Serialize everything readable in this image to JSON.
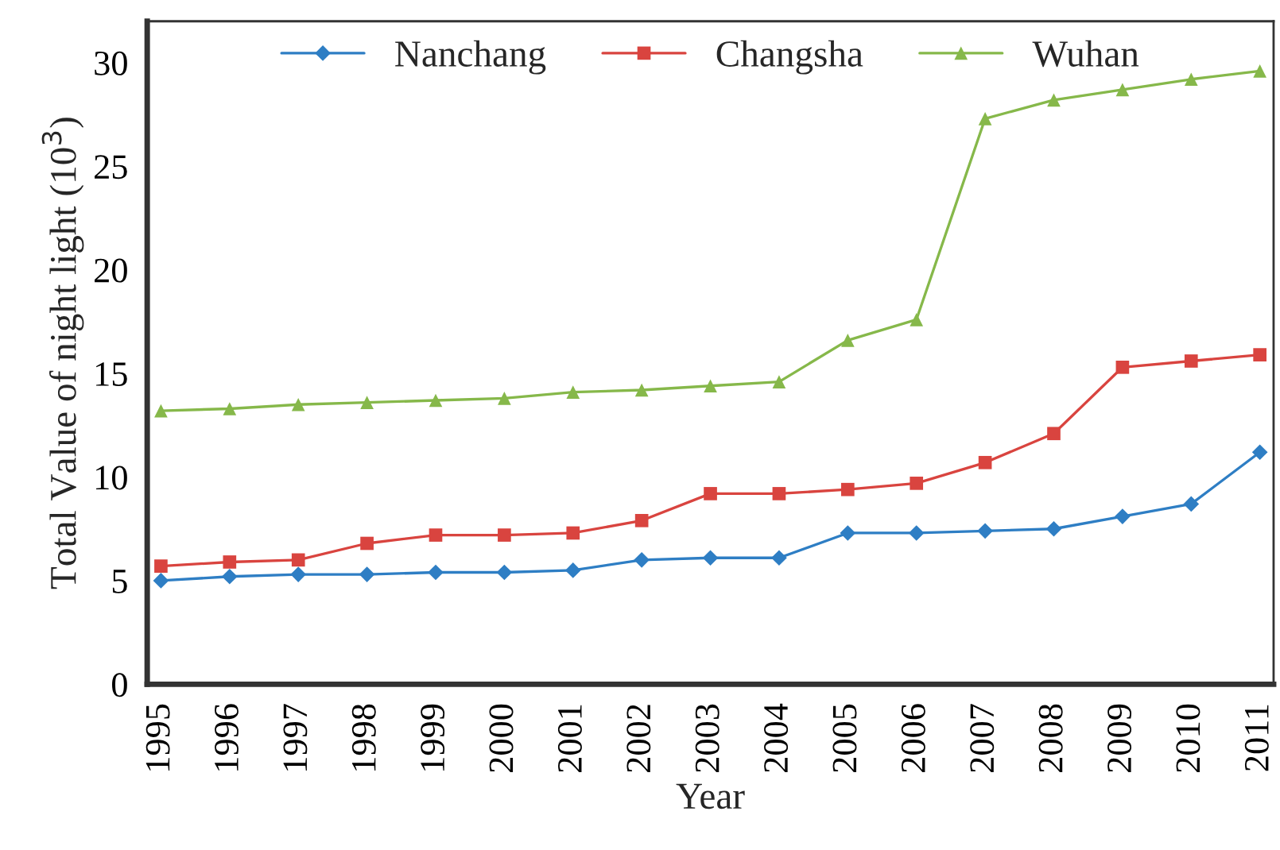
{
  "chart_data": {
    "type": "line",
    "xlabel": "Year",
    "ylabel": "Total Value of night light (10$^{3}$)",
    "categories": [
      "1995",
      "1996",
      "1997",
      "1998",
      "1999",
      "2000",
      "2001",
      "2002",
      "2003",
      "2004",
      "2005",
      "2006",
      "2007",
      "2008",
      "2009",
      "2010",
      "2011"
    ],
    "series": [
      {
        "name": "Nanchang",
        "color": "#2e7ec4",
        "marker": "diamond",
        "values": [
          5.0,
          5.2,
          5.3,
          5.3,
          5.4,
          5.4,
          5.5,
          6.0,
          6.1,
          6.1,
          7.3,
          7.3,
          7.4,
          7.5,
          8.1,
          8.7,
          11.2
        ]
      },
      {
        "name": "Changsha",
        "color": "#d9443f",
        "marker": "square",
        "values": [
          5.7,
          5.9,
          6.0,
          6.8,
          7.2,
          7.2,
          7.3,
          7.9,
          9.2,
          9.2,
          9.4,
          9.7,
          10.7,
          12.1,
          15.3,
          15.6,
          15.9
        ]
      },
      {
        "name": "Wuhan",
        "color": "#86b84a",
        "marker": "triangle",
        "values": [
          13.2,
          13.3,
          13.5,
          13.6,
          13.7,
          13.8,
          14.1,
          14.2,
          14.4,
          14.6,
          16.6,
          17.6,
          27.3,
          28.2,
          28.7,
          29.2,
          29.6
        ]
      }
    ],
    "ylim": [
      0,
      32
    ],
    "yticks": [
      0,
      5,
      10,
      15,
      20,
      25,
      30
    ],
    "grid": false,
    "legend": "top",
    "line_style": "solid"
  }
}
